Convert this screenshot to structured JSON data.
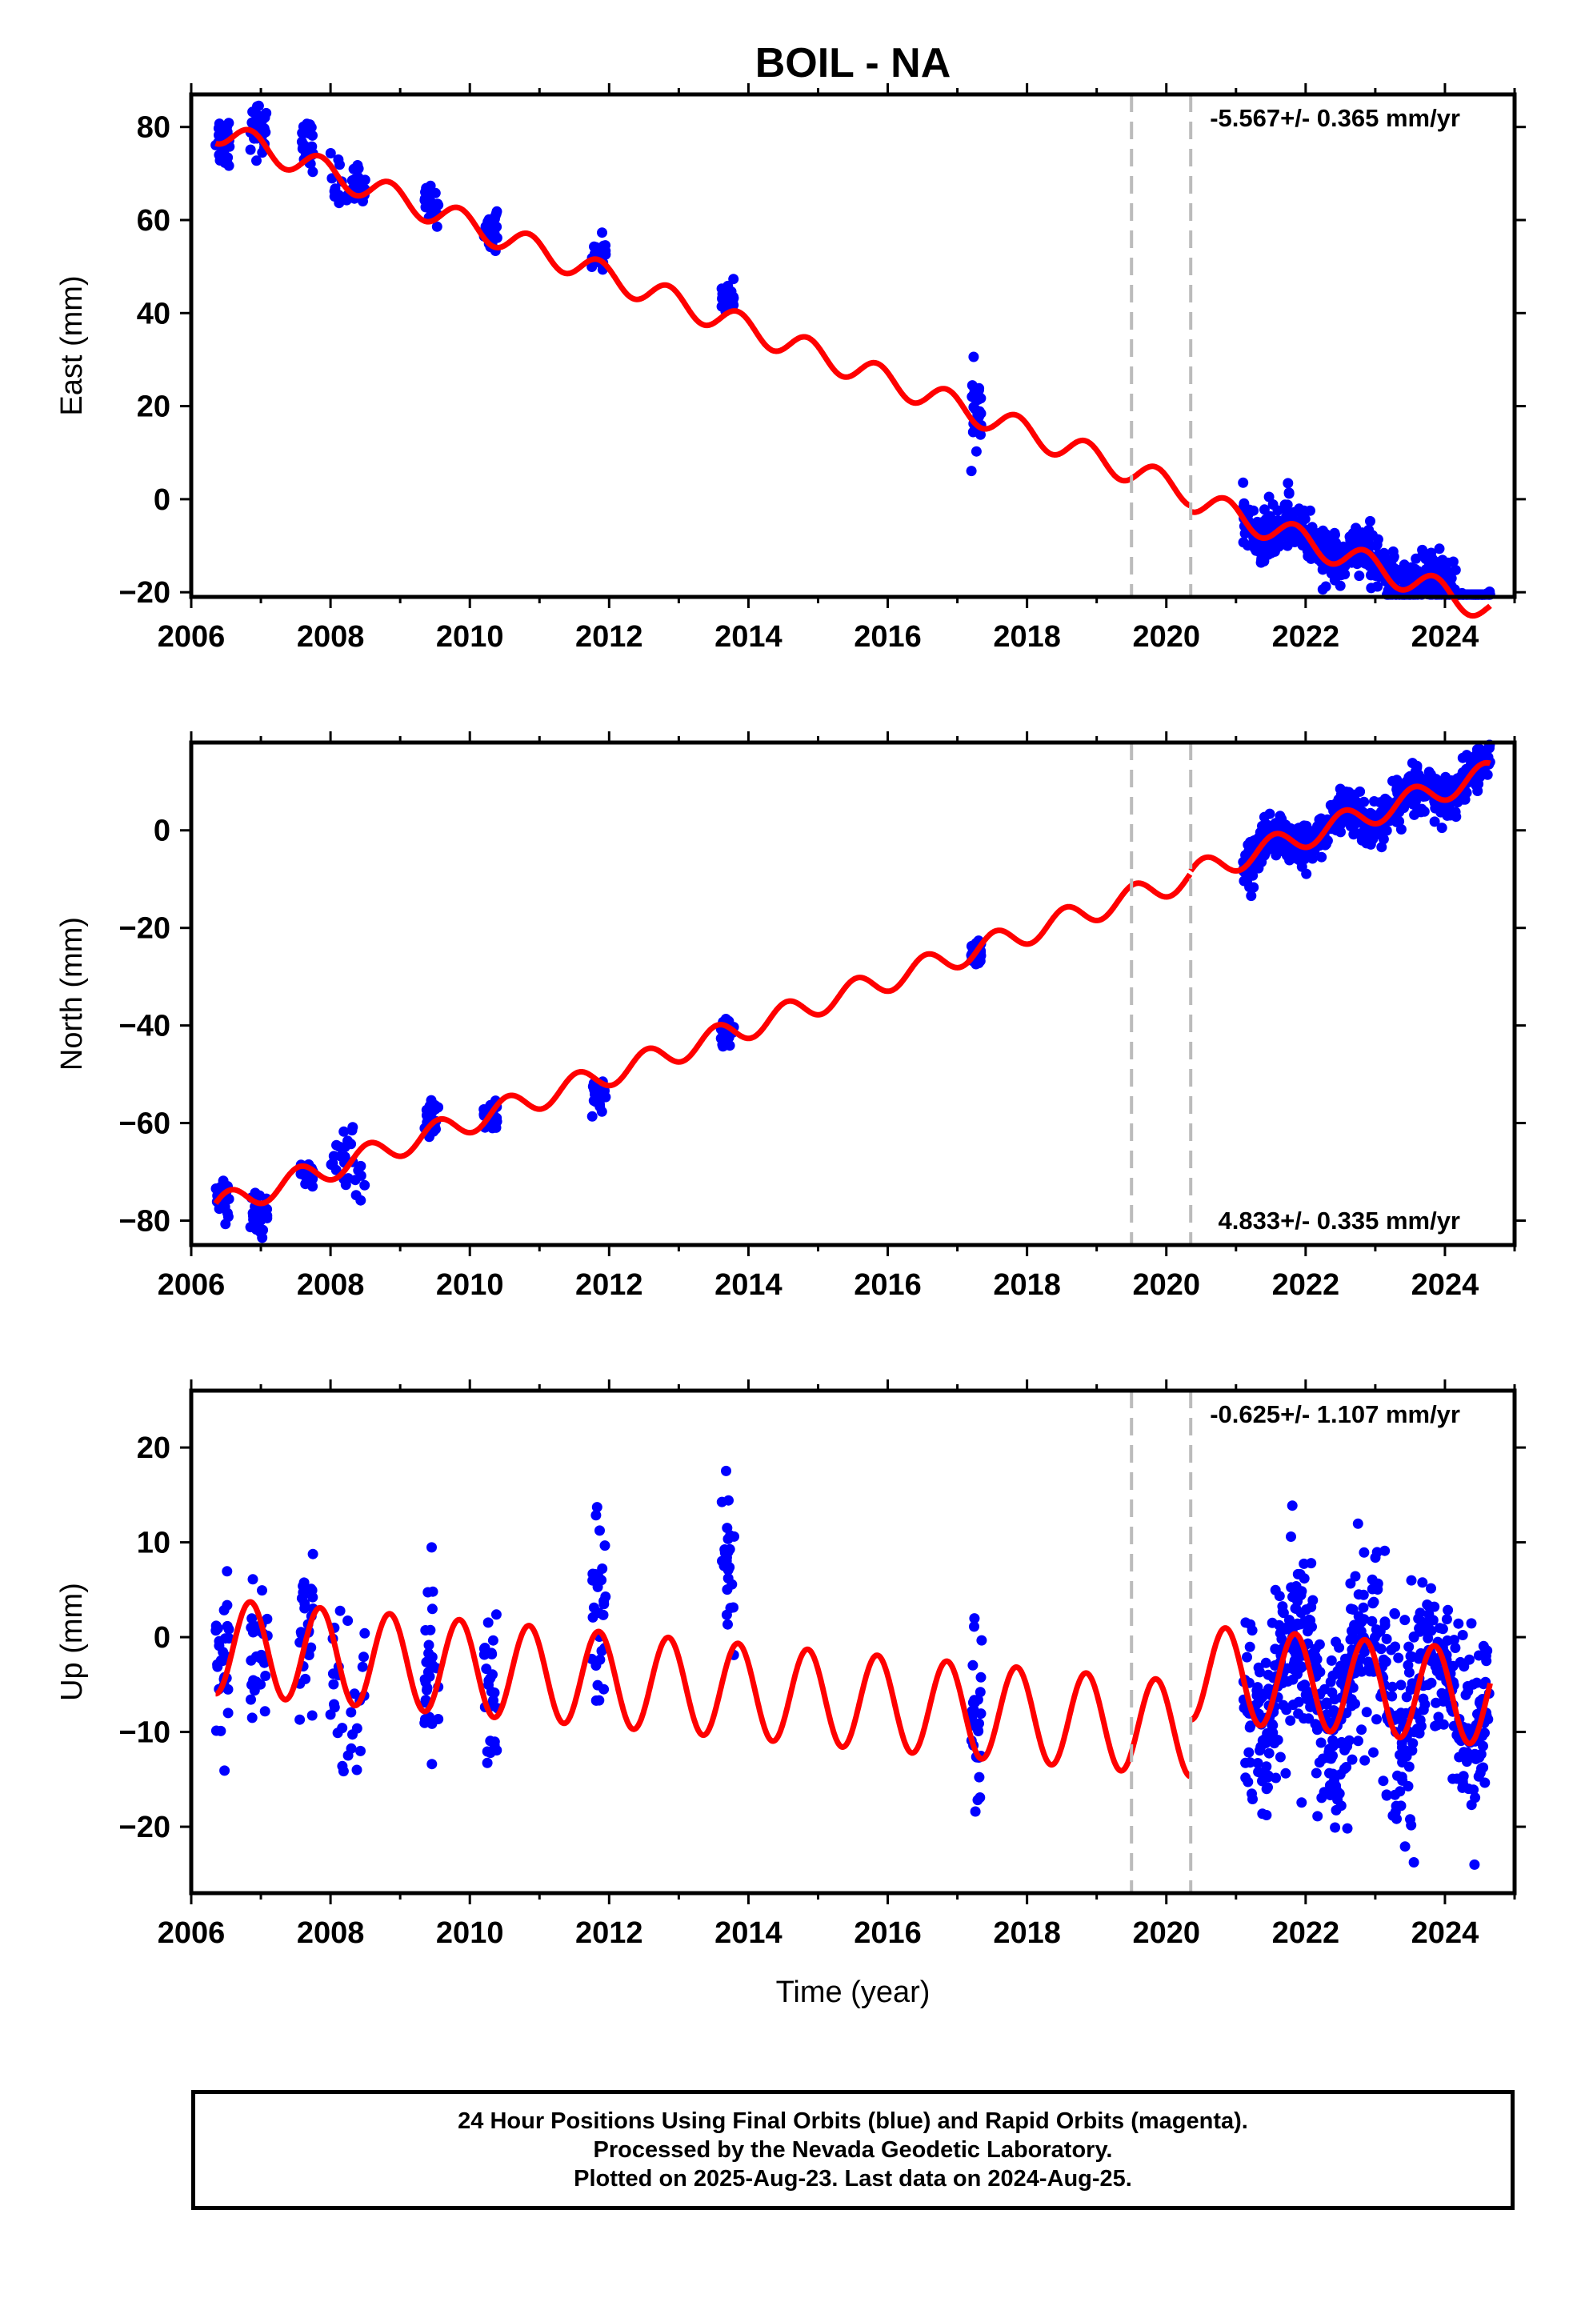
{
  "title": "BOIL - NA",
  "xlabel": "Time (year)",
  "footer": {
    "line1": "24 Hour Positions Using Final Orbits (blue) and Rapid Orbits (magenta).",
    "line2": "Processed by the Nevada Geodetic Laboratory.",
    "line3": "Plotted on 2025-Aug-23. Last data on 2024-Aug-25."
  },
  "colors": {
    "data_points": "#0000ff",
    "model_line": "#ff0000",
    "break_lines": "#bbbbbb",
    "frame": "#000000"
  },
  "chart_data": [
    {
      "type": "scatter",
      "panel": "east",
      "ylabel": "East (mm)",
      "xlim": [
        2006,
        2025
      ],
      "ylim": [
        -21,
        87
      ],
      "x_ticks": [
        2006,
        2008,
        2010,
        2012,
        2014,
        2016,
        2018,
        2020,
        2022,
        2024
      ],
      "y_ticks": [
        -20,
        0,
        20,
        40,
        60,
        80
      ],
      "rate_label": "-5.567+/- 0.365 mm/yr",
      "rate_label_position": "top-right",
      "break_lines_x": [
        2019.5,
        2020.35
      ],
      "model": {
        "offset": 79,
        "ref_year": 2006.4,
        "rate": -5.567,
        "amplitude": 2.8,
        "phase_peak_frac": 0.85,
        "step_at": 2020.35,
        "step": -1.2
      },
      "campaigns": [
        {
          "x": [
            2006.35,
            2006.55
          ],
          "center": 77,
          "spread": 3
        },
        {
          "x": [
            2006.85,
            2007.1
          ],
          "center": 80,
          "spread": 3
        },
        {
          "x": [
            2007.55,
            2007.75
          ],
          "center": 76,
          "spread": 2.5
        },
        {
          "x": [
            2008.0,
            2008.5
          ],
          "center": 68,
          "spread": 3
        },
        {
          "x": [
            2009.35,
            2009.55
          ],
          "center": 63,
          "spread": 2
        },
        {
          "x": [
            2010.2,
            2010.4
          ],
          "center": 58,
          "spread": 2
        },
        {
          "x": [
            2011.75,
            2011.95
          ],
          "center": 53,
          "spread": 2
        },
        {
          "x": [
            2013.6,
            2013.8
          ],
          "center": 43,
          "spread": 1.5
        },
        {
          "x": [
            2017.2,
            2017.35
          ],
          "center": 20,
          "spread": 4
        },
        {
          "x": [
            2021.1,
            2024.65
          ],
          "center": "model",
          "spread": 2.8
        }
      ]
    },
    {
      "type": "scatter",
      "panel": "north",
      "ylabel": "North (mm)",
      "xlim": [
        2006,
        2025
      ],
      "ylim": [
        -85,
        18
      ],
      "x_ticks": [
        2006,
        2008,
        2010,
        2012,
        2014,
        2016,
        2018,
        2020,
        2022,
        2024
      ],
      "y_ticks": [
        -80,
        -60,
        -40,
        -20,
        0
      ],
      "rate_label": "4.833+/- 0.335 mm/yr",
      "rate_label_position": "bottom-right",
      "break_lines_x": [
        2019.5,
        2020.35
      ],
      "model": {
        "offset": -77,
        "ref_year": 2006.4,
        "rate": 4.833,
        "amplitude": 2.5,
        "phase_peak_frac": 0.55,
        "step_at": 2020.35,
        "step": 0.5
      },
      "campaigns": [
        {
          "x": [
            2006.35,
            2006.55
          ],
          "center": -75,
          "spread": 2
        },
        {
          "x": [
            2006.85,
            2007.1
          ],
          "center": -79,
          "spread": 2.5
        },
        {
          "x": [
            2007.55,
            2007.75
          ],
          "center": -70,
          "spread": 1.5
        },
        {
          "x": [
            2008.0,
            2008.5
          ],
          "center": -68,
          "spread": 3
        },
        {
          "x": [
            2009.35,
            2009.55
          ],
          "center": -59,
          "spread": 2
        },
        {
          "x": [
            2010.2,
            2010.4
          ],
          "center": -59,
          "spread": 2
        },
        {
          "x": [
            2011.75,
            2011.95
          ],
          "center": -55,
          "spread": 2
        },
        {
          "x": [
            2013.6,
            2013.8
          ],
          "center": -42,
          "spread": 1.5
        },
        {
          "x": [
            2017.2,
            2017.35
          ],
          "center": -25,
          "spread": 1.5
        },
        {
          "x": [
            2021.1,
            2024.65
          ],
          "center": "model",
          "spread": 2.2
        }
      ]
    },
    {
      "type": "scatter",
      "panel": "up",
      "ylabel": "Up (mm)",
      "xlim": [
        2006,
        2025
      ],
      "ylim": [
        -27,
        26
      ],
      "x_ticks": [
        2006,
        2008,
        2010,
        2012,
        2014,
        2016,
        2018,
        2020,
        2022,
        2024
      ],
      "y_ticks": [
        -20,
        -10,
        0,
        10,
        20
      ],
      "rate_label": "-0.625+/- 1.107 mm/yr",
      "rate_label_position": "top-right",
      "break_lines_x": [
        2019.5,
        2020.35
      ],
      "model": {
        "offset": -1,
        "ref_year": 2006.4,
        "rate": -0.625,
        "amplitude": 5,
        "phase_peak_frac": 0.85,
        "step_at": 2020.35,
        "step": 6
      },
      "campaigns": [
        {
          "x": [
            2006.35,
            2006.55
          ],
          "center": -4,
          "spread": 5
        },
        {
          "x": [
            2006.85,
            2007.1
          ],
          "center": -3,
          "spread": 5
        },
        {
          "x": [
            2007.55,
            2007.75
          ],
          "center": 1,
          "spread": 4
        },
        {
          "x": [
            2008.0,
            2008.5
          ],
          "center": -7,
          "spread": 6
        },
        {
          "x": [
            2009.35,
            2009.55
          ],
          "center": -3,
          "spread": 5
        },
        {
          "x": [
            2010.2,
            2010.4
          ],
          "center": -6,
          "spread": 5
        },
        {
          "x": [
            2011.75,
            2011.95
          ],
          "center": 2,
          "spread": 6
        },
        {
          "x": [
            2013.6,
            2013.8
          ],
          "center": 7,
          "spread": 5
        },
        {
          "x": [
            2017.2,
            2017.35
          ],
          "center": -8,
          "spread": 6
        },
        {
          "x": [
            2021.1,
            2024.65
          ],
          "center": "model",
          "spread": 5
        }
      ]
    }
  ]
}
